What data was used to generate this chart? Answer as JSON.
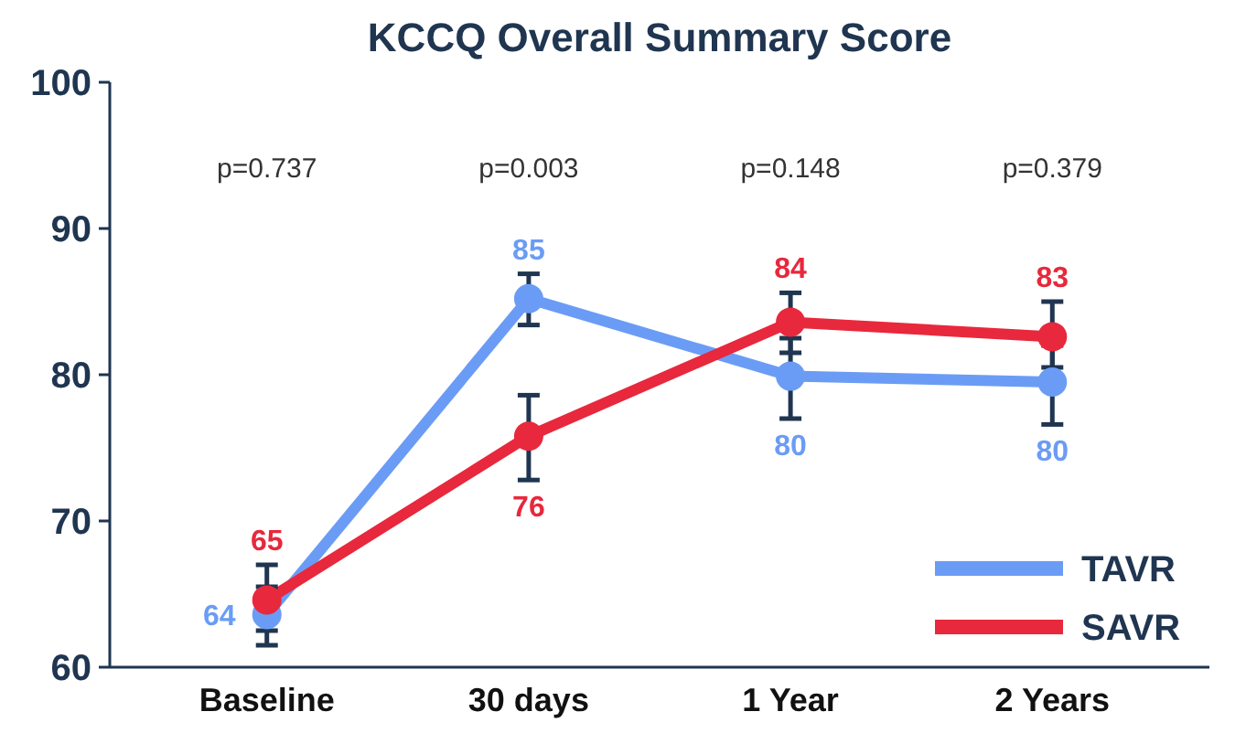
{
  "chart_data": {
    "type": "line",
    "title": "KCCQ Overall Summary Score",
    "categories": [
      "Baseline",
      "30 days",
      "1 Year",
      "2 Years"
    ],
    "series": [
      {
        "name": "TAVR",
        "color": "#6b9cf5",
        "values": [
          63.6,
          85.2,
          79.9,
          79.5
        ],
        "value_labels": [
          "64",
          "85",
          "80",
          "80"
        ],
        "errors": [
          [
            61.5,
            65.5
          ],
          [
            83.4,
            86.9
          ],
          [
            77,
            82.5
          ],
          [
            76.6,
            82
          ]
        ]
      },
      {
        "name": "SAVR",
        "color": "#e8283c",
        "values": [
          64.6,
          75.8,
          83.6,
          82.6
        ],
        "value_labels": [
          "65",
          "76",
          "84",
          "83"
        ],
        "errors": [
          [
            62.5,
            67
          ],
          [
            72.8,
            78.6
          ],
          [
            81.5,
            85.6
          ],
          [
            80.5,
            85
          ]
        ]
      }
    ],
    "annotations": [
      "p=0.737",
      "p=0.003",
      "p=0.148",
      "p=0.379"
    ],
    "ylim": [
      60,
      100
    ],
    "yticks": [
      60,
      70,
      80,
      90,
      100
    ],
    "grid": false,
    "legend": "bottom right",
    "marker": "circle",
    "line_style": "solid"
  }
}
